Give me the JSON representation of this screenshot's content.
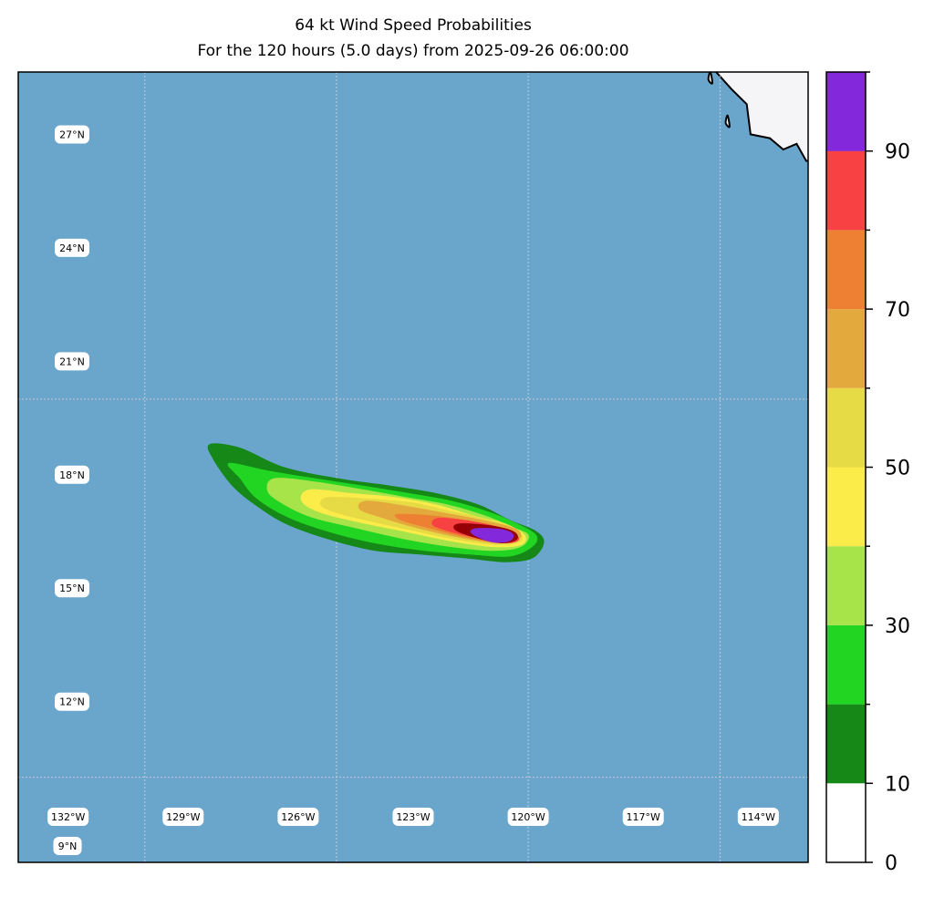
{
  "title": {
    "line1": "64 kt Wind Speed Probabilities",
    "line2": "For the 120 hours (5.0 days) from 2025-09-26 06:00:00"
  },
  "map": {
    "extent": {
      "lon_min": -133.3,
      "lon_max": -112.7,
      "lat_min": 7.75,
      "lat_max": 28.65
    },
    "ocean_color": "#6aa6cc",
    "land_color": "#f5f5f7",
    "lat_labels": [
      "27°N",
      "24°N",
      "21°N",
      "18°N",
      "15°N",
      "12°N",
      "9°N"
    ],
    "lon_labels": [
      "132°W",
      "129°W",
      "126°W",
      "123°W",
      "120°W",
      "117°W",
      "114°W"
    ]
  },
  "colorbar": {
    "label_values": [
      "0",
      "10",
      "30",
      "50",
      "70",
      "90"
    ],
    "bounds": [
      0,
      10,
      20,
      30,
      40,
      50,
      60,
      70,
      80,
      90,
      100
    ],
    "colors": [
      "#ffffff",
      "#158817",
      "#22d522",
      "#a6e44a",
      "#fbec4a",
      "#e6da45",
      "#e4a93c",
      "#ee8033",
      "#f84143",
      "#960004",
      "#8329db"
    ]
  },
  "chart_data": {
    "type": "contour-map",
    "title": "64 kt Wind Speed Probabilities",
    "subtitle": "For the 120 hours (5.0 days) from 2025-09-26 06:00:00",
    "units": "%",
    "levels": [
      {
        "min": 0,
        "max": 10,
        "color": "#158817",
        "lon": [
          -128.3,
          -127.5,
          -126.4,
          -125.0,
          -123.6,
          -122.4,
          -121.3,
          -120.5,
          -119.8,
          -119.6,
          -119.9,
          -120.6,
          -121.6,
          -122.8,
          -124.0,
          -125.2,
          -126.3,
          -127.1,
          -127.7,
          -128.2
        ],
        "lat": [
          18.8,
          18.7,
          18.2,
          17.9,
          17.7,
          17.5,
          17.2,
          16.8,
          16.5,
          16.2,
          15.8,
          15.7,
          15.8,
          15.9,
          16.0,
          16.3,
          16.7,
          17.2,
          17.7,
          18.4
        ]
      },
      {
        "min": 10,
        "max": 20,
        "color": "#22d522",
        "lon": [
          -127.8,
          -126.8,
          -125.6,
          -124.3,
          -123.1,
          -122.0,
          -121.0,
          -120.3,
          -119.8,
          -119.9,
          -120.5,
          -121.5,
          -122.7,
          -124.0,
          -125.2,
          -126.3,
          -127.1,
          -127.5
        ],
        "lat": [
          18.3,
          18.1,
          17.9,
          17.7,
          17.5,
          17.3,
          17.0,
          16.7,
          16.4,
          16.1,
          15.85,
          15.9,
          16.0,
          16.2,
          16.5,
          16.9,
          17.4,
          17.9
        ]
      },
      {
        "min": 20,
        "max": 30,
        "color": "#a6e44a",
        "lon": [
          -126.6,
          -125.5,
          -124.3,
          -123.2,
          -122.1,
          -121.1,
          -120.4,
          -120.0,
          -120.2,
          -120.9,
          -122.0,
          -123.2,
          -124.5,
          -125.7,
          -126.5,
          -126.8
        ],
        "lat": [
          17.9,
          17.8,
          17.6,
          17.4,
          17.2,
          16.9,
          16.6,
          16.4,
          16.1,
          16.0,
          16.1,
          16.3,
          16.6,
          16.9,
          17.3,
          17.6
        ]
      },
      {
        "min": 30,
        "max": 40,
        "color": "#fbec4a",
        "lon": [
          -125.7,
          -124.6,
          -123.5,
          -122.4,
          -121.4,
          -120.6,
          -120.1,
          -120.2,
          -120.9,
          -122.0,
          -123.2,
          -124.4,
          -125.4,
          -125.9
        ],
        "lat": [
          17.6,
          17.5,
          17.4,
          17.2,
          16.9,
          16.7,
          16.4,
          16.15,
          16.1,
          16.25,
          16.5,
          16.75,
          17.0,
          17.3
        ]
      },
      {
        "min": 40,
        "max": 50,
        "color": "#e6da45",
        "lon": [
          -125.2,
          -124.1,
          -123.0,
          -121.9,
          -121.0,
          -120.3,
          -120.2,
          -120.8,
          -121.9,
          -123.1,
          -124.2,
          -125.0,
          -125.4
        ],
        "lat": [
          17.4,
          17.35,
          17.25,
          17.0,
          16.8,
          16.55,
          16.25,
          16.15,
          16.3,
          16.55,
          16.8,
          17.0,
          17.2
        ]
      },
      {
        "min": 50,
        "max": 60,
        "color": "#e4a93c",
        "lon": [
          -124.2,
          -123.1,
          -122.0,
          -121.0,
          -120.3,
          -120.25,
          -120.8,
          -121.8,
          -122.9,
          -123.9,
          -124.4
        ],
        "lat": [
          17.3,
          17.15,
          16.95,
          16.75,
          16.55,
          16.3,
          16.2,
          16.35,
          16.6,
          16.9,
          17.1
        ]
      },
      {
        "min": 60,
        "max": 70,
        "color": "#ee8033",
        "lon": [
          -123.4,
          -122.4,
          -121.4,
          -120.6,
          -120.25,
          -120.7,
          -121.6,
          -122.6,
          -123.3
        ],
        "lat": [
          16.95,
          16.9,
          16.75,
          16.55,
          16.3,
          16.2,
          16.35,
          16.6,
          16.8
        ]
      },
      {
        "min": 70,
        "max": 80,
        "color": "#f84143",
        "lon": [
          -122.3,
          -121.4,
          -120.6,
          -120.25,
          -120.6,
          -121.4,
          -122.2,
          -122.5
        ],
        "lat": [
          16.85,
          16.75,
          16.55,
          16.3,
          16.2,
          16.35,
          16.55,
          16.7
        ]
      },
      {
        "min": 80,
        "max": 90,
        "color": "#960004",
        "lon": [
          -121.8,
          -121.0,
          -120.4,
          -120.3,
          -120.7,
          -121.4,
          -121.9
        ],
        "lat": [
          16.7,
          16.65,
          16.5,
          16.3,
          16.2,
          16.35,
          16.55
        ]
      },
      {
        "min": 90,
        "max": 100,
        "color": "#8329db",
        "lon": [
          -121.3,
          -120.7,
          -120.4,
          -120.5,
          -120.9,
          -121.3,
          -121.5
        ],
        "lat": [
          16.58,
          16.55,
          16.42,
          16.25,
          16.22,
          16.35,
          16.5
        ]
      }
    ],
    "lat_ticks": [
      27,
      24,
      21,
      18,
      15,
      12,
      9
    ],
    "lon_ticks": [
      -132,
      -129,
      -126,
      -123,
      -120,
      -117,
      -114
    ],
    "gridlines": {
      "lat": [
        20,
        10
      ],
      "lon": [
        -130,
        -125,
        -120,
        -115
      ]
    },
    "coastline": {
      "lon": [
        -115.1,
        -114.7,
        -114.3,
        -114.2,
        -113.7,
        -113.35,
        -113.0,
        -112.75
      ],
      "lat": [
        28.65,
        28.2,
        27.8,
        27.0,
        26.9,
        26.6,
        26.75,
        26.3
      ]
    },
    "coast_islands": [
      {
        "lon": [
          -115.25,
          -115.2,
          -115.3
        ],
        "lat": [
          28.65,
          28.35,
          28.45
        ]
      },
      {
        "lon": [
          -114.8,
          -114.75,
          -114.85
        ],
        "lat": [
          27.5,
          27.2,
          27.3
        ]
      }
    ],
    "colorbar_range": [
      0,
      100
    ]
  }
}
